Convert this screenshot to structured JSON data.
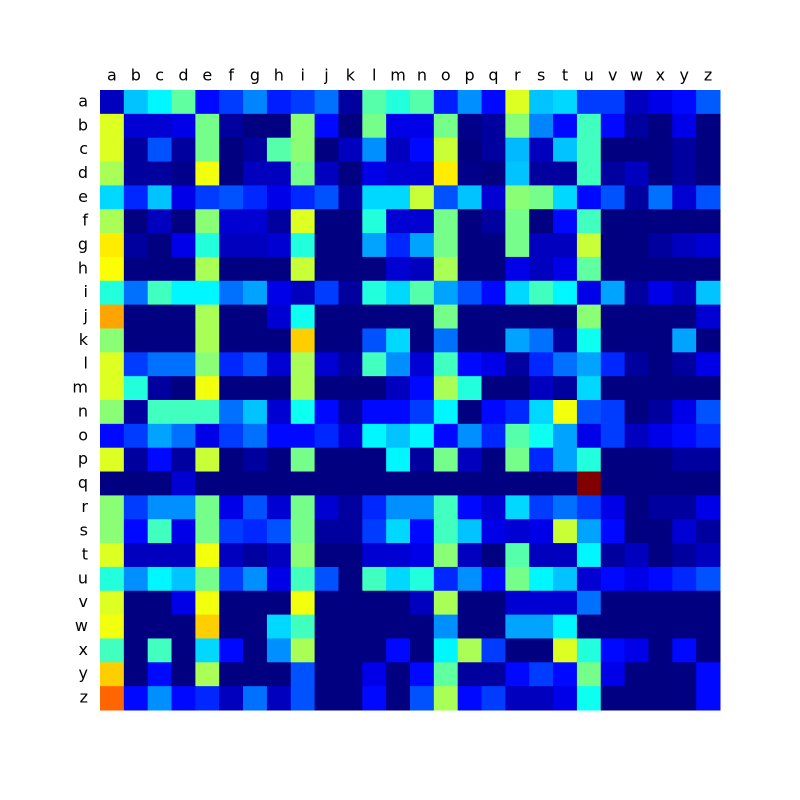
{
  "chart_data": {
    "type": "heatmap",
    "colormap": "jet",
    "x_categories": [
      "a",
      "b",
      "c",
      "d",
      "e",
      "f",
      "g",
      "h",
      "i",
      "j",
      "k",
      "l",
      "m",
      "n",
      "o",
      "p",
      "q",
      "r",
      "s",
      "t",
      "u",
      "v",
      "w",
      "x",
      "y",
      "z"
    ],
    "y_categories": [
      "a",
      "b",
      "c",
      "d",
      "e",
      "f",
      "g",
      "h",
      "i",
      "j",
      "k",
      "l",
      "m",
      "n",
      "o",
      "p",
      "q",
      "r",
      "s",
      "t",
      "u",
      "v",
      "w",
      "x",
      "y",
      "z"
    ],
    "values": [
      [
        0.08,
        0.33,
        0.38,
        0.48,
        0.15,
        0.2,
        0.27,
        0.17,
        0.2,
        0.25,
        0.05,
        0.47,
        0.42,
        0.47,
        0.17,
        0.28,
        0.15,
        0.6,
        0.33,
        0.35,
        0.2,
        0.2,
        0.08,
        0.12,
        0.15,
        0.23
      ],
      [
        0.6,
        0.1,
        0.1,
        0.12,
        0.5,
        0.05,
        0.02,
        0.02,
        0.52,
        0.15,
        0.02,
        0.5,
        0.12,
        0.12,
        0.5,
        0.03,
        0.05,
        0.52,
        0.27,
        0.15,
        0.45,
        0.15,
        0.05,
        0.02,
        0.12,
        0.02
      ],
      [
        0.6,
        0.05,
        0.22,
        0.05,
        0.5,
        0.02,
        0.05,
        0.47,
        0.52,
        0.02,
        0.08,
        0.28,
        0.08,
        0.15,
        0.58,
        0.02,
        0.05,
        0.32,
        0.08,
        0.33,
        0.45,
        0.02,
        0.02,
        0.02,
        0.05,
        0.02
      ],
      [
        0.55,
        0.05,
        0.05,
        0.03,
        0.62,
        0.02,
        0.08,
        0.08,
        0.5,
        0.08,
        0.02,
        0.12,
        0.1,
        0.1,
        0.65,
        0.03,
        0.02,
        0.33,
        0.05,
        0.05,
        0.45,
        0.05,
        0.08,
        0.02,
        0.05,
        0.02
      ],
      [
        0.35,
        0.18,
        0.33,
        0.12,
        0.2,
        0.22,
        0.18,
        0.12,
        0.18,
        0.22,
        0.05,
        0.35,
        0.35,
        0.58,
        0.22,
        0.33,
        0.1,
        0.52,
        0.5,
        0.35,
        0.15,
        0.22,
        0.05,
        0.25,
        0.1,
        0.22
      ],
      [
        0.55,
        0.02,
        0.08,
        0.02,
        0.52,
        0.1,
        0.1,
        0.05,
        0.6,
        0.02,
        0.02,
        0.42,
        0.1,
        0.1,
        0.5,
        0.02,
        0.05,
        0.5,
        0.02,
        0.15,
        0.45,
        0.02,
        0.02,
        0.02,
        0.02,
        0.02
      ],
      [
        0.65,
        0.05,
        0.02,
        0.12,
        0.42,
        0.08,
        0.08,
        0.1,
        0.42,
        0.02,
        0.02,
        0.3,
        0.18,
        0.3,
        0.5,
        0.02,
        0.02,
        0.5,
        0.08,
        0.08,
        0.58,
        0.02,
        0.02,
        0.05,
        0.08,
        0.1
      ],
      [
        0.63,
        0.02,
        0.02,
        0.02,
        0.55,
        0.02,
        0.02,
        0.02,
        0.58,
        0.02,
        0.02,
        0.02,
        0.1,
        0.08,
        0.55,
        0.02,
        0.02,
        0.12,
        0.08,
        0.12,
        0.48,
        0.02,
        0.02,
        0.02,
        0.02,
        0.02
      ],
      [
        0.42,
        0.25,
        0.45,
        0.38,
        0.38,
        0.25,
        0.3,
        0.12,
        0.08,
        0.2,
        0.05,
        0.42,
        0.35,
        0.47,
        0.3,
        0.22,
        0.15,
        0.35,
        0.45,
        0.38,
        0.12,
        0.3,
        0.05,
        0.12,
        0.08,
        0.33
      ],
      [
        0.72,
        0.02,
        0.02,
        0.02,
        0.55,
        0.02,
        0.02,
        0.1,
        0.4,
        0.02,
        0.02,
        0.02,
        0.02,
        0.02,
        0.5,
        0.02,
        0.02,
        0.02,
        0.02,
        0.02,
        0.52,
        0.02,
        0.02,
        0.02,
        0.02,
        0.1
      ],
      [
        0.52,
        0.02,
        0.02,
        0.02,
        0.55,
        0.02,
        0.02,
        0.02,
        0.68,
        0.02,
        0.02,
        0.22,
        0.35,
        0.02,
        0.25,
        0.02,
        0.02,
        0.3,
        0.25,
        0.05,
        0.4,
        0.02,
        0.02,
        0.02,
        0.3,
        0.02
      ],
      [
        0.6,
        0.2,
        0.25,
        0.25,
        0.52,
        0.18,
        0.22,
        0.1,
        0.55,
        0.1,
        0.05,
        0.45,
        0.28,
        0.1,
        0.45,
        0.15,
        0.12,
        0.05,
        0.18,
        0.25,
        0.3,
        0.18,
        0.05,
        0.02,
        0.05,
        0.12
      ],
      [
        0.6,
        0.42,
        0.05,
        0.02,
        0.62,
        0.02,
        0.02,
        0.02,
        0.55,
        0.02,
        0.02,
        0.02,
        0.08,
        0.15,
        0.55,
        0.42,
        0.02,
        0.02,
        0.08,
        0.05,
        0.35,
        0.02,
        0.02,
        0.02,
        0.02,
        0.02
      ],
      [
        0.52,
        0.05,
        0.45,
        0.45,
        0.45,
        0.25,
        0.33,
        0.1,
        0.4,
        0.15,
        0.05,
        0.15,
        0.15,
        0.2,
        0.38,
        0.02,
        0.15,
        0.18,
        0.35,
        0.62,
        0.22,
        0.2,
        0.02,
        0.05,
        0.12,
        0.22
      ],
      [
        0.15,
        0.2,
        0.3,
        0.25,
        0.12,
        0.2,
        0.25,
        0.15,
        0.15,
        0.18,
        0.1,
        0.38,
        0.33,
        0.38,
        0.15,
        0.28,
        0.18,
        0.47,
        0.4,
        0.3,
        0.12,
        0.2,
        0.08,
        0.12,
        0.15,
        0.18
      ],
      [
        0.6,
        0.05,
        0.15,
        0.05,
        0.58,
        0.02,
        0.05,
        0.02,
        0.5,
        0.02,
        0.02,
        0.02,
        0.38,
        0.05,
        0.5,
        0.08,
        0.02,
        0.5,
        0.18,
        0.3,
        0.42,
        0.02,
        0.02,
        0.02,
        0.05,
        0.05
      ],
      [
        0.02,
        0.02,
        0.02,
        0.1,
        0.02,
        0.02,
        0.02,
        0.02,
        0.02,
        0.02,
        0.02,
        0.02,
        0.02,
        0.02,
        0.02,
        0.02,
        0.02,
        0.02,
        0.02,
        0.02,
        1.0,
        0.02,
        0.02,
        0.02,
        0.02,
        0.02
      ],
      [
        0.52,
        0.2,
        0.28,
        0.28,
        0.5,
        0.12,
        0.22,
        0.1,
        0.5,
        0.1,
        0.05,
        0.18,
        0.28,
        0.28,
        0.45,
        0.15,
        0.1,
        0.35,
        0.2,
        0.25,
        0.2,
        0.12,
        0.02,
        0.05,
        0.05,
        0.12
      ],
      [
        0.52,
        0.15,
        0.45,
        0.12,
        0.5,
        0.2,
        0.18,
        0.22,
        0.5,
        0.05,
        0.05,
        0.2,
        0.35,
        0.15,
        0.45,
        0.33,
        0.12,
        0.1,
        0.12,
        0.58,
        0.3,
        0.15,
        0.02,
        0.02,
        0.1,
        0.05
      ],
      [
        0.6,
        0.08,
        0.08,
        0.08,
        0.62,
        0.08,
        0.05,
        0.08,
        0.52,
        0.02,
        0.02,
        0.1,
        0.1,
        0.12,
        0.52,
        0.08,
        0.02,
        0.47,
        0.08,
        0.08,
        0.38,
        0.05,
        0.08,
        0.02,
        0.05,
        0.08
      ],
      [
        0.42,
        0.28,
        0.38,
        0.33,
        0.5,
        0.2,
        0.28,
        0.12,
        0.45,
        0.22,
        0.02,
        0.45,
        0.35,
        0.42,
        0.18,
        0.28,
        0.15,
        0.5,
        0.38,
        0.33,
        0.1,
        0.15,
        0.12,
        0.15,
        0.18,
        0.22
      ],
      [
        0.6,
        0.02,
        0.02,
        0.12,
        0.62,
        0.02,
        0.02,
        0.02,
        0.62,
        0.02,
        0.02,
        0.02,
        0.02,
        0.08,
        0.55,
        0.02,
        0.02,
        0.1,
        0.1,
        0.1,
        0.25,
        0.02,
        0.02,
        0.02,
        0.02,
        0.02
      ],
      [
        0.62,
        0.02,
        0.02,
        0.02,
        0.68,
        0.02,
        0.02,
        0.35,
        0.45,
        0.02,
        0.02,
        0.02,
        0.02,
        0.02,
        0.28,
        0.02,
        0.02,
        0.3,
        0.3,
        0.38,
        0.02,
        0.02,
        0.02,
        0.02,
        0.02,
        0.02
      ],
      [
        0.45,
        0.02,
        0.45,
        0.02,
        0.35,
        0.15,
        0.02,
        0.28,
        0.55,
        0.02,
        0.02,
        0.02,
        0.15,
        0.02,
        0.38,
        0.55,
        0.2,
        0.02,
        0.02,
        0.6,
        0.42,
        0.15,
        0.12,
        0.02,
        0.15,
        0.02
      ],
      [
        0.68,
        0.02,
        0.15,
        0.02,
        0.55,
        0.02,
        0.02,
        0.02,
        0.22,
        0.02,
        0.02,
        0.12,
        0.02,
        0.15,
        0.48,
        0.05,
        0.05,
        0.15,
        0.2,
        0.15,
        0.5,
        0.12,
        0.02,
        0.02,
        0.02,
        0.15
      ],
      [
        0.78,
        0.15,
        0.28,
        0.15,
        0.18,
        0.08,
        0.25,
        0.08,
        0.22,
        0.02,
        0.02,
        0.15,
        0.02,
        0.22,
        0.55,
        0.15,
        0.2,
        0.08,
        0.08,
        0.12,
        0.4,
        0.02,
        0.02,
        0.02,
        0.02,
        0.15
      ]
    ]
  }
}
